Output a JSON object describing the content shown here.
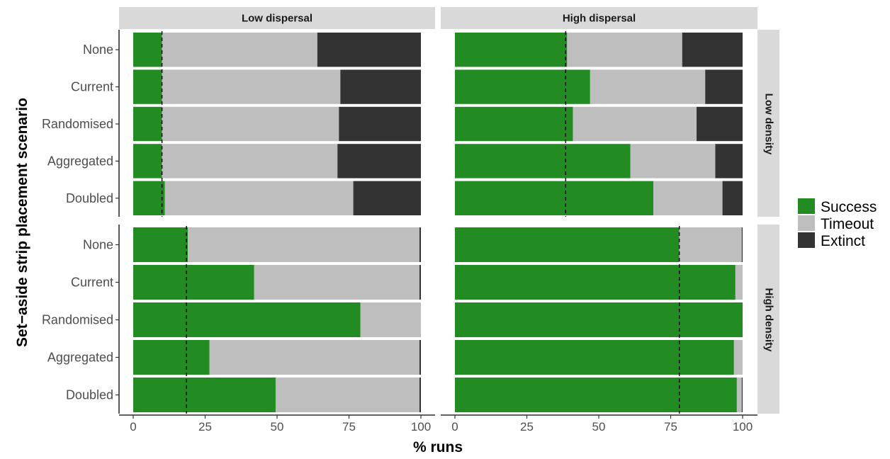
{
  "chart_data": {
    "type": "bar",
    "orientation": "horizontal",
    "stacked": true,
    "xlabel": "% runs",
    "ylabel": "Set−aside strip placement scenario",
    "xlim": [
      0,
      100
    ],
    "x_ticks": [
      "0",
      "25",
      "50",
      "75",
      "100"
    ],
    "categories": [
      "None",
      "Current",
      "Randomised",
      "Aggregated",
      "Doubled"
    ],
    "column_facets": [
      "Low dispersal",
      "High dispersal"
    ],
    "row_facets": [
      "Low density",
      "High density"
    ],
    "legend": {
      "position": "right",
      "entries": [
        {
          "name": "Success",
          "color": "#228B22"
        },
        {
          "name": "Timeout",
          "color": "#BEBEBE"
        },
        {
          "name": "Extinct",
          "color": "#333333"
        }
      ]
    },
    "grid": false,
    "panels": [
      {
        "row": "Low density",
        "col": "Low dispersal",
        "reference_line": 10,
        "success": [
          10,
          10,
          10,
          10,
          11
        ],
        "timeout": [
          54,
          62,
          61.5,
          61,
          65.5
        ],
        "extinct": [
          36,
          28,
          28.5,
          29,
          23.5
        ]
      },
      {
        "row": "Low density",
        "col": "High dispersal",
        "reference_line": 38.5,
        "success": [
          39,
          47,
          41,
          61,
          69
        ],
        "timeout": [
          40,
          40,
          43,
          29.5,
          24
        ],
        "extinct": [
          21,
          13,
          16,
          9.5,
          7
        ]
      },
      {
        "row": "High density",
        "col": "Low dispersal",
        "reference_line": 18.5,
        "success": [
          19,
          42,
          79,
          26.5,
          49.5
        ],
        "timeout": [
          80.5,
          57.5,
          21,
          73,
          50
        ],
        "extinct": [
          0.5,
          0.5,
          0,
          0.5,
          0.5
        ]
      },
      {
        "row": "High density",
        "col": "High dispersal",
        "reference_line": 78,
        "success": [
          78,
          97.5,
          100,
          97,
          98
        ],
        "timeout": [
          21.7,
          2.5,
          0,
          3,
          1.7
        ],
        "extinct": [
          0.3,
          0,
          0,
          0,
          0.3
        ]
      }
    ]
  }
}
